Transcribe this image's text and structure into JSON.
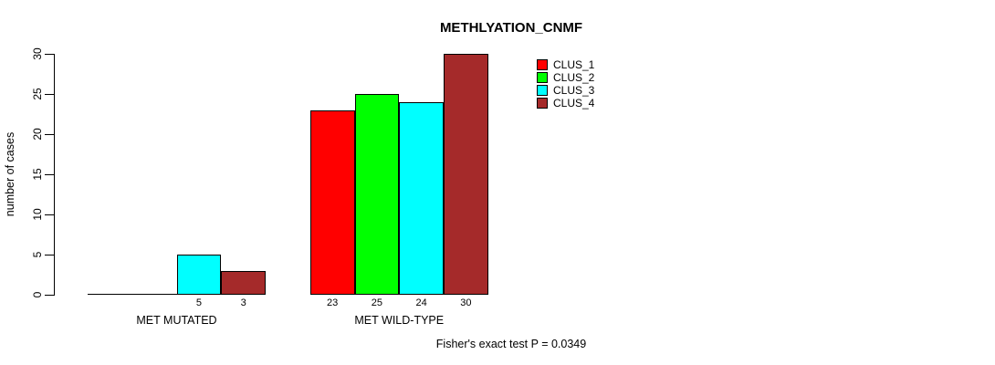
{
  "chart_data": {
    "type": "bar",
    "title": "METHLYATION_CNMF",
    "ylabel": "number of cases",
    "xlabel": "",
    "ylim": [
      0,
      30
    ],
    "yticks": [
      0,
      5,
      10,
      15,
      20,
      25,
      30
    ],
    "grid": false,
    "legend_position": "top-right-inside",
    "background": "#ffffff",
    "axis_color": "#000000",
    "text_color": "#000000",
    "categories": [
      "MET MUTATED",
      "MET WILD-TYPE"
    ],
    "series": [
      {
        "name": "CLUS_1",
        "color": "#ff0000",
        "values": [
          0,
          23
        ]
      },
      {
        "name": "CLUS_2",
        "color": "#00ff00",
        "values": [
          0,
          25
        ]
      },
      {
        "name": "CLUS_3",
        "color": "#00ffff",
        "values": [
          5,
          24
        ]
      },
      {
        "name": "CLUS_4",
        "color": "#a52a2a",
        "values": [
          3,
          30
        ]
      }
    ],
    "bar_value_labels": [
      [
        "",
        "",
        "5",
        "3"
      ],
      [
        "23",
        "25",
        "24",
        "30"
      ]
    ],
    "annotation": "Fisher's exact test P = 0.0349"
  }
}
